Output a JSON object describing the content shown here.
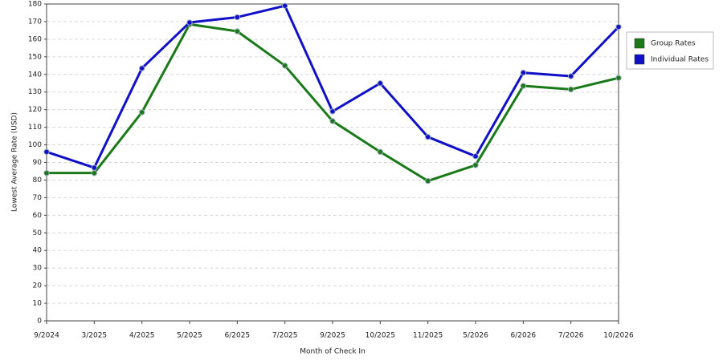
{
  "chart_data": {
    "type": "line",
    "x_label": "Month of Check In",
    "y_label": "Lowest Average Rate (USD)",
    "categories": [
      "9/2024",
      "3/2025",
      "4/2025",
      "5/2025",
      "6/2025",
      "7/2025",
      "9/2025",
      "10/2025",
      "11/2025",
      "5/2026",
      "6/2026",
      "7/2026",
      "10/2026"
    ],
    "series": [
      {
        "name": "Group Rates",
        "color": "#1a7a1a",
        "values": [
          84,
          84,
          118.5,
          168.5,
          164.5,
          145,
          113.5,
          96,
          79.5,
          88.5,
          133.5,
          131.5,
          138
        ]
      },
      {
        "name": "Individual Rates",
        "color": "#1010c8",
        "values": [
          96,
          87,
          143.5,
          169.5,
          172.5,
          179,
          119,
          135,
          104.5,
          93.5,
          141,
          139,
          167
        ]
      }
    ],
    "ylim": [
      0,
      180
    ],
    "yticks": [
      0,
      10,
      20,
      30,
      40,
      50,
      60,
      70,
      80,
      90,
      100,
      110,
      120,
      130,
      140,
      150,
      160,
      170,
      180
    ],
    "grid": true,
    "legend": "right"
  }
}
